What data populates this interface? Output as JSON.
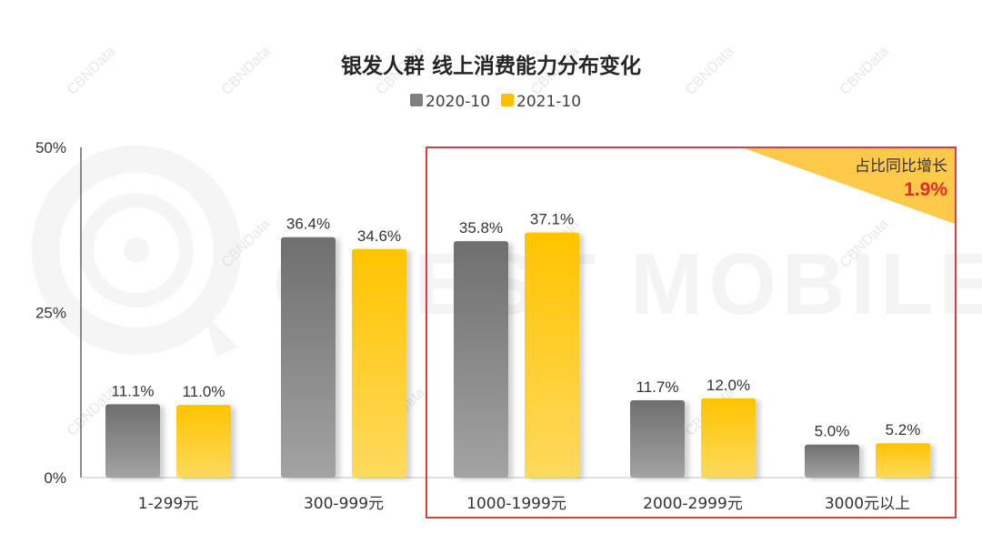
{
  "watermark": {
    "brand": "QUEST MOBILE",
    "tag": "CBNData"
  },
  "colors": {
    "series_2020": "#7f7f7f",
    "series_2021": "#ffc000",
    "highlight_box": "#d9282f",
    "annotation_fill": "#ffc94a",
    "annotation_value": "#e52b2b"
  },
  "annotation": {
    "label": "占比同比增长",
    "value": "1.9%"
  },
  "chart_data": {
    "type": "bar",
    "title": "银发人群 线上消费能力分布变化",
    "xlabel": "",
    "ylabel": "",
    "categories": [
      "1-299元",
      "300-999元",
      "1000-1999元",
      "2000-2999元",
      "3000元以上"
    ],
    "series": [
      {
        "name": "2020-10",
        "values": [
          11.1,
          36.4,
          35.8,
          11.7,
          5.0
        ],
        "labels": [
          "11.1%",
          "36.4%",
          "35.8%",
          "11.7%",
          "5.0%"
        ]
      },
      {
        "name": "2021-10",
        "values": [
          11.0,
          34.6,
          37.1,
          12.0,
          5.2
        ],
        "labels": [
          "11.0%",
          "34.6%",
          "37.1%",
          "12.0%",
          "5.2%"
        ]
      }
    ],
    "ylim": [
      0,
      50
    ],
    "yticks": [
      0,
      25,
      50
    ],
    "ytick_labels": [
      "0%",
      "25%",
      "50%"
    ],
    "legend_position": "top-center",
    "grid": false,
    "highlighted_categories": [
      "1000-1999元",
      "2000-2999元",
      "3000元以上"
    ]
  }
}
